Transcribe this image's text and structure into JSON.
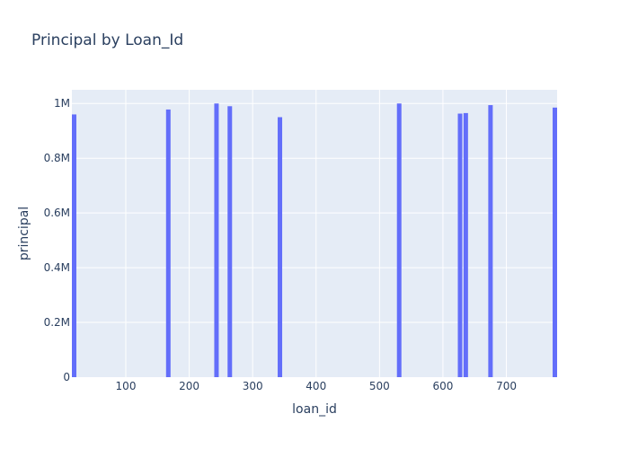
{
  "chart_data": {
    "type": "bar",
    "title": "Principal by Loan_Id",
    "xlabel": "loan_id",
    "ylabel": "principal",
    "xlim": [
      15,
      780
    ],
    "ylim": [
      0,
      1050000
    ],
    "x_ticks": [
      100,
      200,
      300,
      400,
      500,
      600,
      700
    ],
    "y_ticks": [
      0,
      200000,
      400000,
      600000,
      800000,
      1000000
    ],
    "y_tick_labels": [
      "0",
      "0.2M",
      "0.4M",
      "0.6M",
      "0.8M",
      "1M"
    ],
    "bar_color": "#636efa",
    "plot_bg": "#e5ecf6",
    "grid": true,
    "legend": "none",
    "x": [
      18,
      167,
      243,
      264,
      343,
      531,
      627,
      636,
      675,
      777
    ],
    "values": [
      960000,
      978000,
      1000000,
      990000,
      950000,
      1000000,
      963000,
      965000,
      994000,
      985000
    ]
  }
}
